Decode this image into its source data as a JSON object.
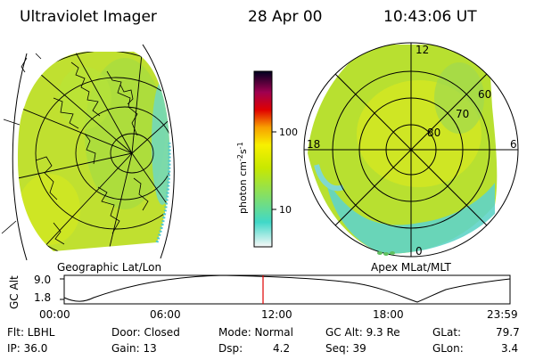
{
  "header": {
    "title": "Ultraviolet Imager",
    "date": "28 Apr 00",
    "time": "10:43:06 UT"
  },
  "left_map": {
    "caption": "Geographic Lat/Lon"
  },
  "colorbar": {
    "unit_label": "photon cm",
    "exp1": "-2",
    "s_label": "s",
    "exp2": "-1",
    "tick_100": "100",
    "tick_10": "10",
    "stops": [
      "#f8f8f8",
      "#40d8c8",
      "#88e060",
      "#c8e800",
      "#f8f000",
      "#f8a000",
      "#e00000",
      "#a00050",
      "#000020"
    ]
  },
  "right_map": {
    "caption": "Apex MLat/MLT",
    "labels": {
      "mlt_12": "12",
      "mlt_18": "18",
      "mlt_6": "6",
      "mlt_0": "0",
      "lat_60": "60",
      "lat_70": "70",
      "lat_80": "80"
    }
  },
  "altitude_plot": {
    "ylabel": "GC Alt",
    "ytick_top": "9.0",
    "ytick_bottom": "1.8",
    "xticks": [
      "00:00",
      "06:00",
      "12:00",
      "18:00",
      "23:59"
    ],
    "marker_color": "#e00000",
    "marker_time_fraction": 0.446
  },
  "footer": {
    "row1": {
      "filter": "Flt: LBHL",
      "door": "Door: Closed",
      "mode": "Mode: Normal",
      "gc_alt": "GC Alt: 9.3 Re",
      "glat_label": "GLat:",
      "glat_value": "79.7"
    },
    "row2": {
      "ip": "IP: 36.0",
      "gain": "Gain: 13",
      "dsp_label": "Dsp:",
      "dsp_value": "4.2",
      "seq": "Seq: 39",
      "glon_label": "GLon:",
      "glon_value": "3.4"
    }
  }
}
